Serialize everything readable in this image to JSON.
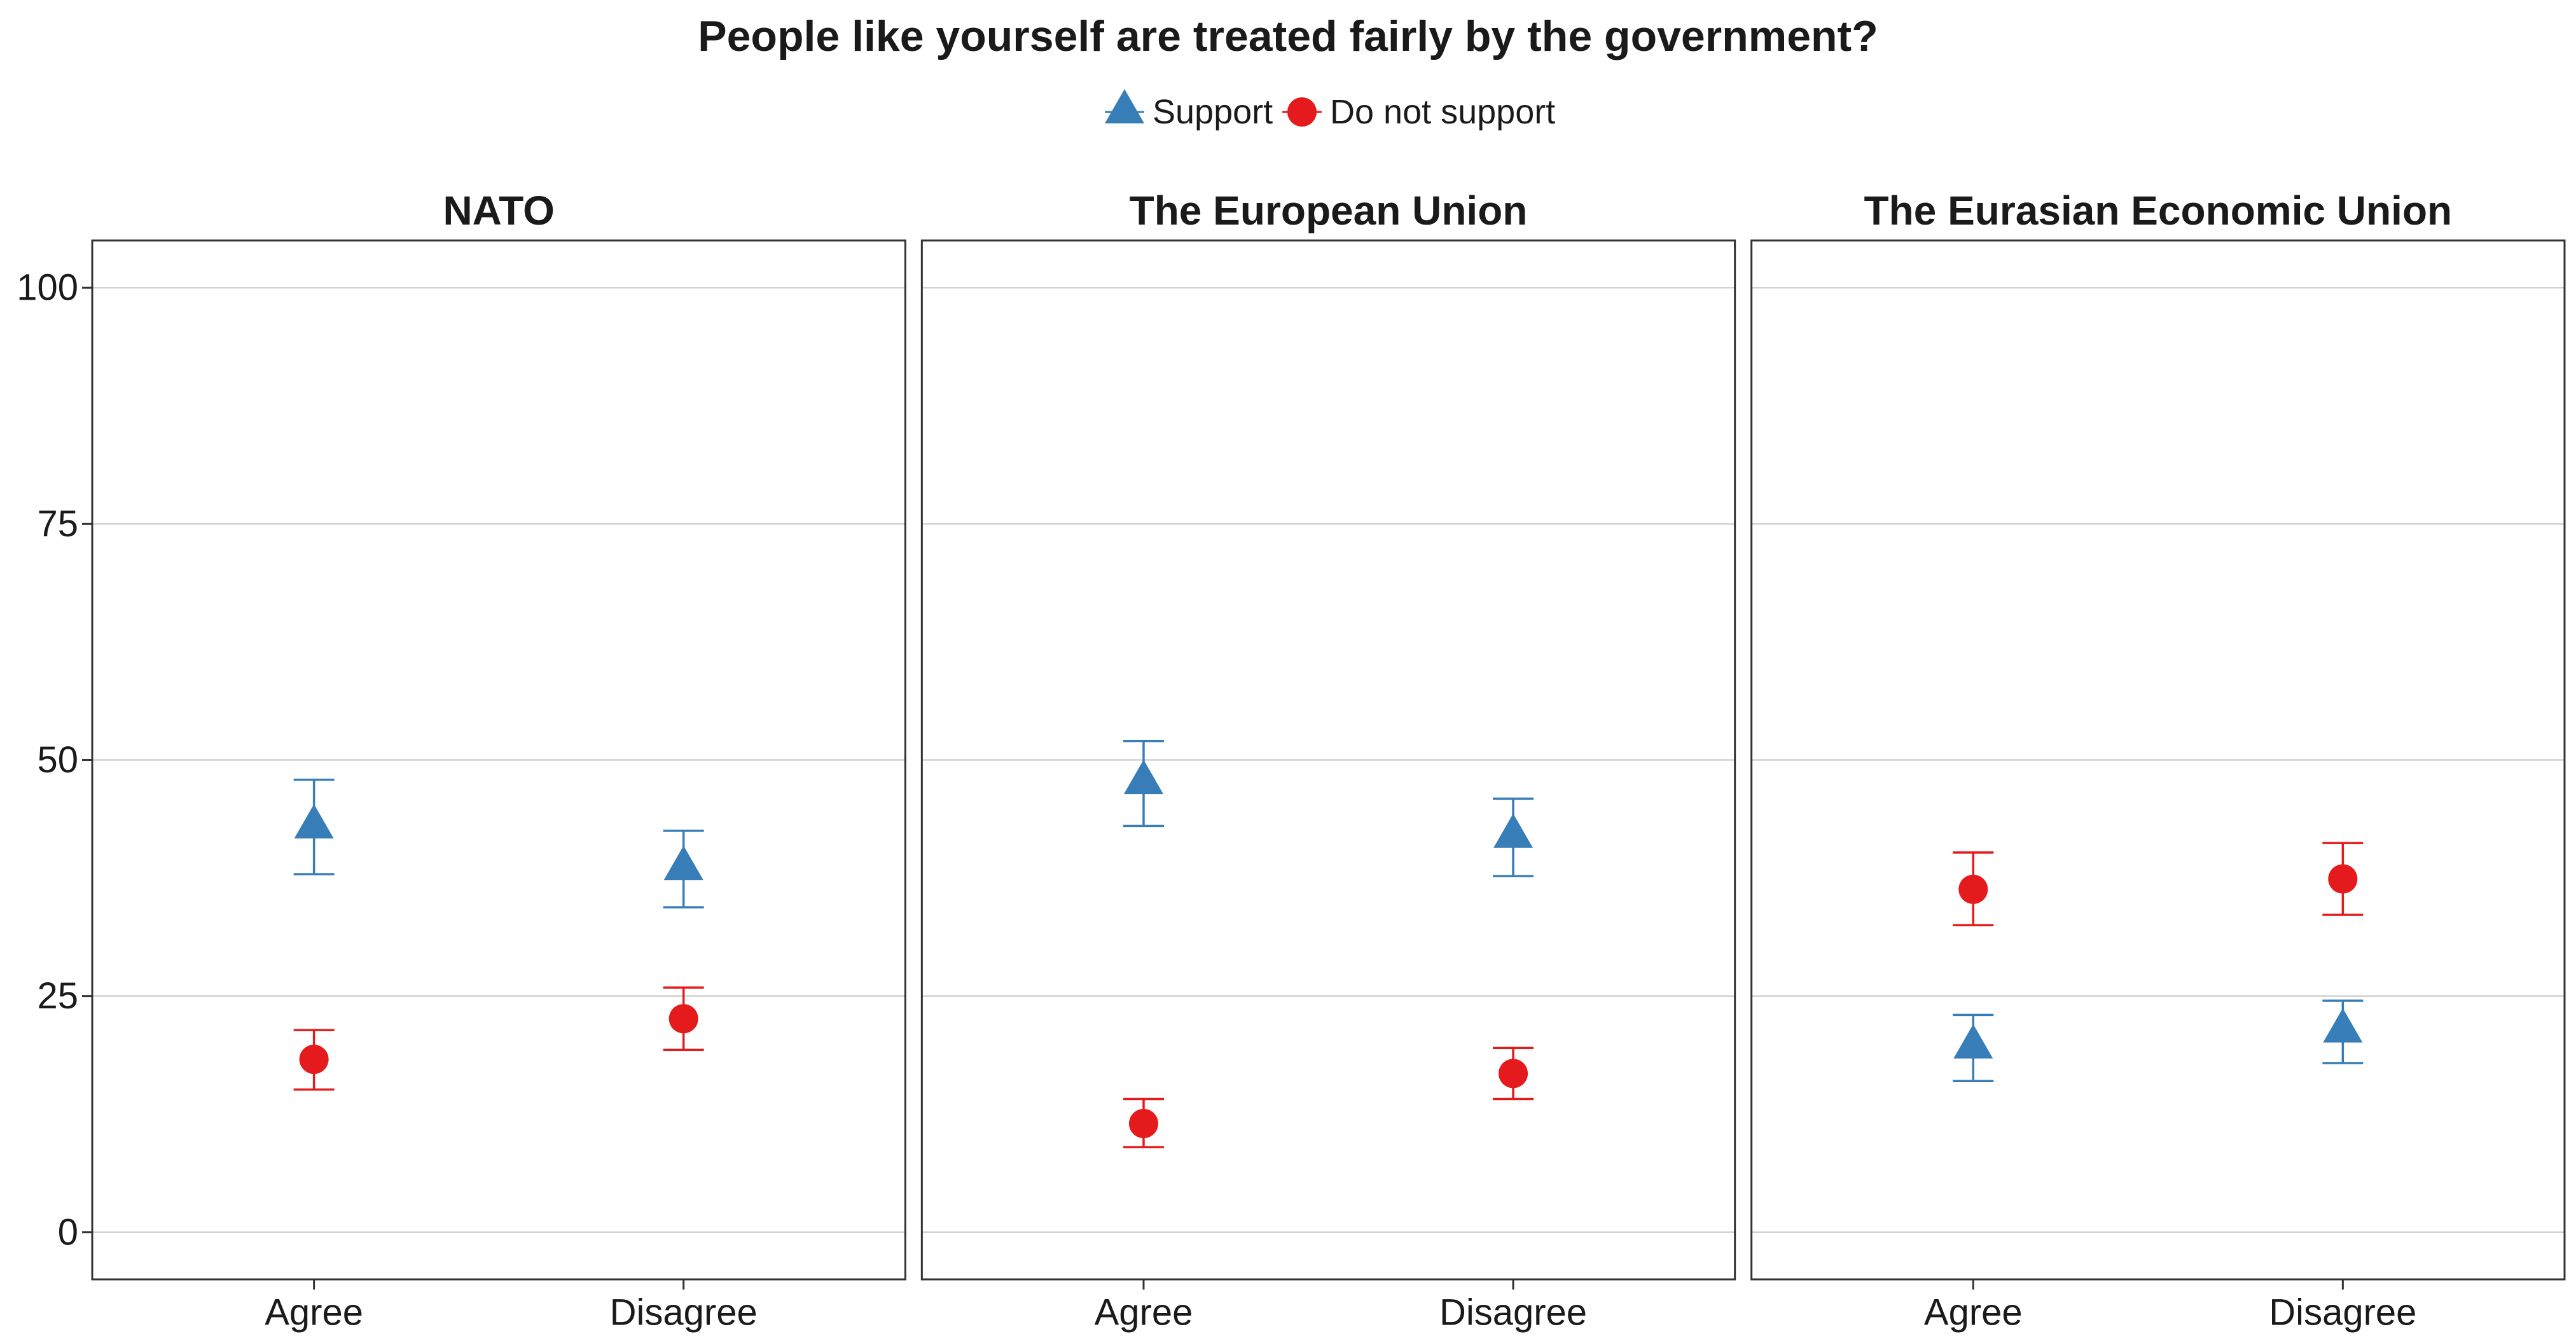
{
  "chart_data": {
    "type": "scatter",
    "title": "People like yourself are treated fairly by the government?",
    "facets": [
      "NATO",
      "The European Union",
      "The Eurasian Economic Union"
    ],
    "categories": [
      "Agree",
      "Disagree"
    ],
    "ylim": [
      -5,
      105
    ],
    "yticks": [
      0,
      25,
      50,
      75,
      100
    ],
    "grid": true,
    "legend_position": "top",
    "error_bars": true,
    "series": [
      {
        "name": "Support",
        "color": "#377EB8",
        "marker": "triangle",
        "values": [
          [
            42.9,
            38.5
          ],
          [
            47.6,
            41.9
          ],
          [
            19.6,
            21.3
          ]
        ],
        "lower": [
          [
            37.9,
            34.4
          ],
          [
            43.0,
            37.7
          ],
          [
            16.0,
            17.9
          ]
        ],
        "upper": [
          [
            47.9,
            42.5
          ],
          [
            52.0,
            45.9
          ],
          [
            23.0,
            24.5
          ]
        ]
      },
      {
        "name": "Do not support",
        "color": "#E41A1C",
        "marker": "circle",
        "values": [
          [
            18.3,
            22.6
          ],
          [
            11.5,
            16.8
          ],
          [
            36.3,
            37.4
          ]
        ],
        "lower": [
          [
            15.1,
            19.3
          ],
          [
            9.0,
            14.1
          ],
          [
            32.5,
            33.6
          ]
        ],
        "upper": [
          [
            21.4,
            25.9
          ],
          [
            14.1,
            19.5
          ],
          [
            40.2,
            41.2
          ]
        ]
      }
    ]
  }
}
